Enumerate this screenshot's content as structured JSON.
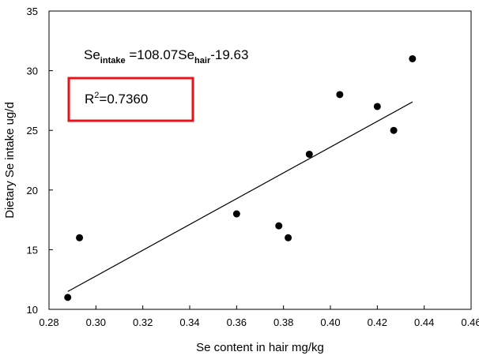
{
  "chart_data": {
    "type": "scatter",
    "xlabel": "Se content in hair mg/kg",
    "ylabel": "Dietary Se intake ug/d",
    "xlim": [
      0.28,
      0.46
    ],
    "ylim": [
      10,
      35
    ],
    "x_ticks": [
      "0.28",
      "0.30",
      "0.32",
      "0.34",
      "0.36",
      "0.38",
      "0.40",
      "0.42",
      "0.44",
      "0.46"
    ],
    "y_ticks": [
      "10",
      "15",
      "20",
      "25",
      "30",
      "35"
    ],
    "grid": false,
    "points": [
      {
        "x": 0.288,
        "y": 11
      },
      {
        "x": 0.293,
        "y": 16
      },
      {
        "x": 0.36,
        "y": 18
      },
      {
        "x": 0.378,
        "y": 17
      },
      {
        "x": 0.382,
        "y": 16
      },
      {
        "x": 0.391,
        "y": 23
      },
      {
        "x": 0.404,
        "y": 28
      },
      {
        "x": 0.42,
        "y": 27
      },
      {
        "x": 0.427,
        "y": 25
      },
      {
        "x": 0.435,
        "y": 31
      }
    ],
    "regression": {
      "slope": 108.07,
      "intercept": -19.63,
      "x_range": [
        0.288,
        0.435
      ]
    },
    "equation": {
      "lhs": "Se",
      "lhs_sub": "intake",
      "mid": " =108.07Se",
      "mid_sub": "hair",
      "rhs": "-19.63"
    },
    "r_squared": {
      "prefix": "R",
      "sup": "2",
      "value": "=0.7360",
      "box_color": "#e8141c"
    }
  }
}
